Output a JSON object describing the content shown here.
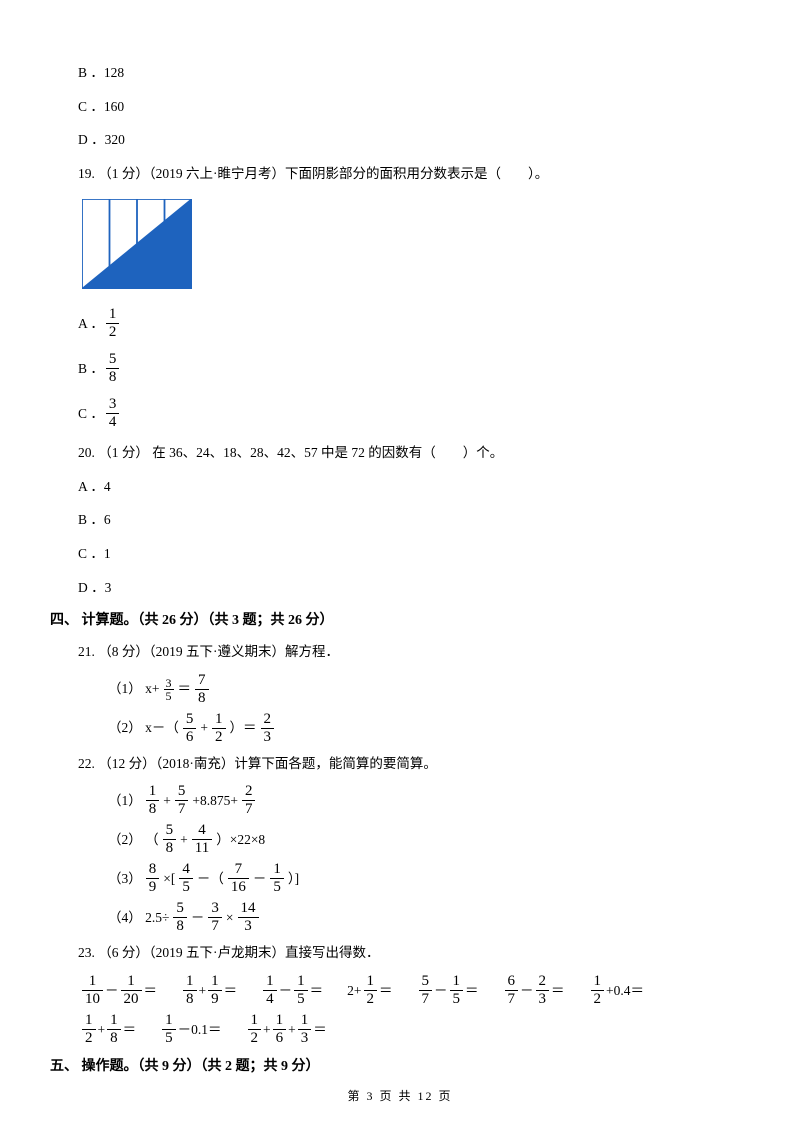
{
  "answers18": {
    "b": "B ．128",
    "c": "C ．160",
    "d": "D ．320"
  },
  "q19": {
    "stem": "19. （1 分）（2019 六上·睢宁月考）下面阴影部分的面积用分数表示是（　　）。",
    "shape": {
      "width": 110,
      "height": 90,
      "cols": 4,
      "fill": "#1e63be",
      "border": "#1e63be"
    },
    "opts": [
      {
        "label": "A ．",
        "num": "1",
        "den": "2"
      },
      {
        "label": "B ．",
        "num": "5",
        "den": "8"
      },
      {
        "label": "C ．",
        "num": "3",
        "den": "4"
      }
    ]
  },
  "q20": {
    "stem": "20. （1 分） 在 36、24、18、28、42、57 中是 72 的因数有（　　）个。",
    "a": "A ．4",
    "b": "B ．6",
    "c": "C ．1",
    "d": "D ．3"
  },
  "section4": "四、 计算题。（共 26 分）（共 3 题；共 26 分）",
  "q21": {
    "stem": "21. （8 分）（2019 五下·遵义期末）解方程．",
    "i1": {
      "label": "（1） x+",
      "f1n": "3",
      "f1d": "5",
      "mid": " ＝ ",
      "f2n": "7",
      "f2d": "8"
    },
    "i2": {
      "label": "（2） x－（",
      "f1n": "5",
      "f1d": "6",
      "plus": "+",
      "f2n": "1",
      "f2d": "2",
      "cparen": "）＝ ",
      "f3n": "2",
      "f3d": "3"
    }
  },
  "q22": {
    "stem": "22. （12 分）（2018·南充）计算下面各题，能简算的要简算。",
    "i1": {
      "label": "（1） ",
      "f1n": "1",
      "f1d": "8",
      "p1": " + ",
      "f2n": "5",
      "f2d": "7",
      "p2": " +8.875+ ",
      "f3n": "2",
      "f3d": "7"
    },
    "i2": {
      "label": "（2） （ ",
      "f1n": "5",
      "f1d": "8",
      "p1": " + ",
      "f2n": "4",
      "f2d": "11",
      "p2": " ）×22×8"
    },
    "i3": {
      "label": "（3） ",
      "f1n": "8",
      "f1d": "9",
      "p1": " ×[ ",
      "f2n": "4",
      "f2d": "5",
      "p2": " －（ ",
      "f3n": "7",
      "f3d": "16",
      "p3": " － ",
      "f4n": "1",
      "f4d": "5",
      "p4": " ）]"
    },
    "i4": {
      "label": "（4） 2.5÷ ",
      "f1n": "5",
      "f1d": "8",
      "p1": " － ",
      "f2n": "3",
      "f2d": "7",
      "p2": " × ",
      "f3n": "14",
      "f3d": "3"
    }
  },
  "q23": {
    "stem": "23. （6 分）（2019 五下·卢龙期末）直接写出得数．",
    "items": [
      {
        "type": "ff",
        "n1": "1",
        "d1": "10",
        "op": "－",
        "n2": "1",
        "d2": "20",
        "post": " ＝"
      },
      {
        "type": "ff",
        "n1": "1",
        "d1": "8",
        "op": " + ",
        "n2": "1",
        "d2": "9",
        "post": " ＝"
      },
      {
        "type": "ff",
        "n1": "1",
        "d1": "4",
        "op": " － ",
        "n2": "1",
        "d2": "5",
        "post": " ＝"
      },
      {
        "type": "nf",
        "pre": "2+ ",
        "n1": "1",
        "d1": "2",
        "post": " ＝"
      },
      {
        "type": "ff",
        "n1": "5",
        "d1": "7",
        "op": " － ",
        "n2": "1",
        "d2": "5",
        "post": " ＝"
      },
      {
        "type": "ff",
        "n1": "6",
        "d1": "7",
        "op": " － ",
        "n2": "2",
        "d2": "3",
        "post": " ＝"
      },
      {
        "type": "fn",
        "n1": "1",
        "d1": "2",
        "post": " +0.4＝"
      },
      {
        "type": "ff",
        "n1": "1",
        "d1": "2",
        "op": " + ",
        "n2": "1",
        "d2": "8",
        "post": " ＝"
      },
      {
        "type": "fn",
        "n1": "1",
        "d1": "5",
        "post": " －0.1＝"
      },
      {
        "type": "fff",
        "n1": "1",
        "d1": "2",
        "op1": " + ",
        "n2": "1",
        "d2": "6",
        "op2": " + ",
        "n3": "1",
        "d3": "3",
        "post": " ＝"
      }
    ]
  },
  "section5": "五、 操作题。（共 9 分）（共 2 题；共 9 分）",
  "footer": "第 3 页 共 12 页"
}
